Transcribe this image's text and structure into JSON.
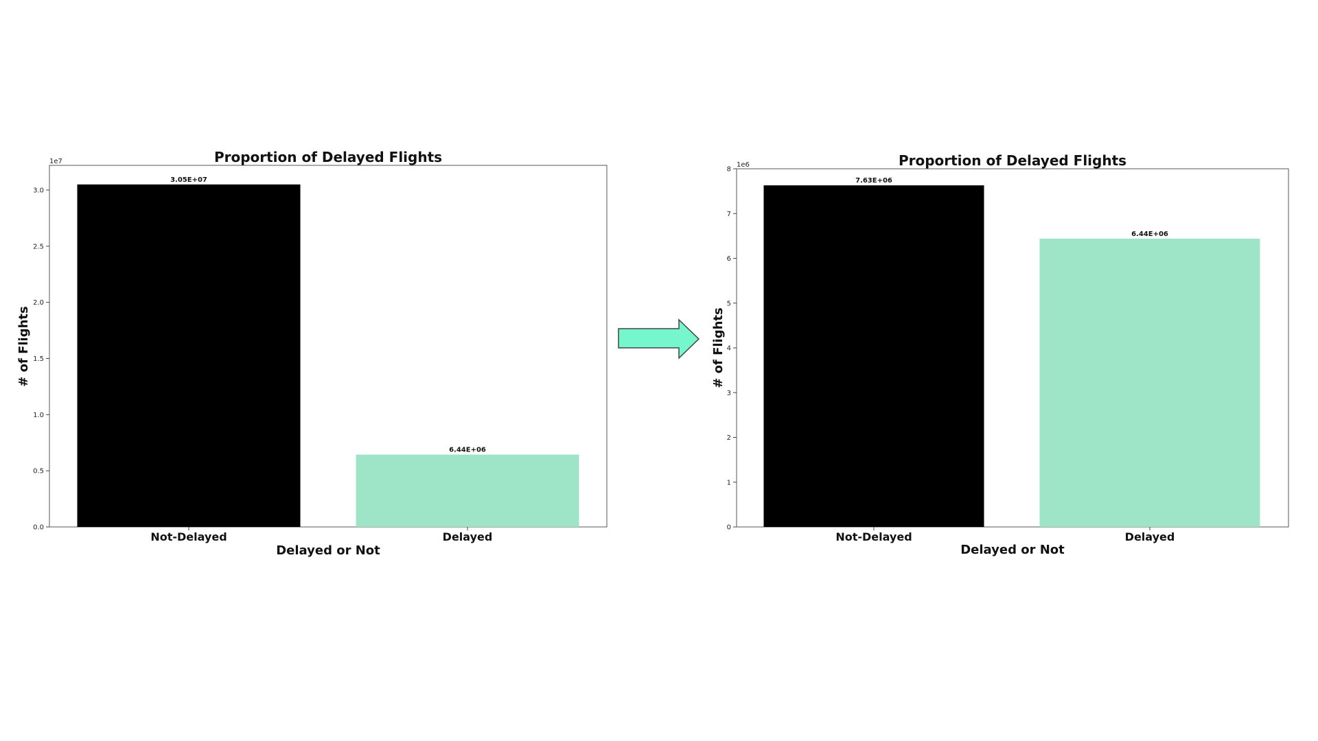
{
  "chart_data": [
    {
      "type": "bar",
      "title": "Proportion of Delayed Flights",
      "xlabel": "Delayed or Not",
      "ylabel": "# of Flights",
      "categories": [
        "Not-Delayed",
        "Delayed"
      ],
      "values": [
        30500000,
        6440000
      ],
      "data_labels": [
        "3.05E+07",
        "6.44E+06"
      ],
      "colors": [
        "#000000",
        "#9ee5c8"
      ],
      "ylim": [
        0,
        32200000
      ],
      "y_offset_label": "1e7",
      "yticks": [
        0,
        5000000,
        10000000,
        15000000,
        20000000,
        25000000,
        30000000
      ],
      "ytick_labels": [
        "0.0",
        "0.5",
        "1.0",
        "1.5",
        "2.0",
        "2.5",
        "3.0"
      ],
      "grid": false
    },
    {
      "type": "bar",
      "title": "Proportion of Delayed Flights",
      "xlabel": "Delayed or Not",
      "ylabel": "# of Flights",
      "categories": [
        "Not-Delayed",
        "Delayed"
      ],
      "values": [
        7630000,
        6440000
      ],
      "data_labels": [
        "7.63E+06",
        "6.44E+06"
      ],
      "colors": [
        "#000000",
        "#9ee5c8"
      ],
      "ylim": [
        0,
        8000000
      ],
      "y_offset_label": "1e6",
      "yticks": [
        0,
        1000000,
        2000000,
        3000000,
        4000000,
        5000000,
        6000000,
        7000000,
        8000000
      ],
      "ytick_labels": [
        "0",
        "1",
        "2",
        "3",
        "4",
        "5",
        "6",
        "7",
        "8"
      ],
      "grid": false
    }
  ],
  "arrow": {
    "fill": "#75f6cc",
    "stroke": "#444444"
  }
}
